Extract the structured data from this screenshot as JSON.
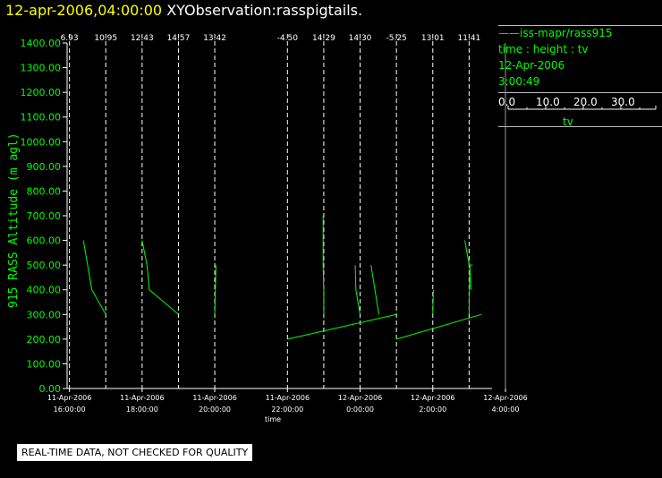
{
  "header": {
    "date_time": "12-apr-2006,04:00:00",
    "title": "XYObservation:rasspigtails."
  },
  "legend": {
    "series_label": "——iss-mapr/rass915",
    "variables": "time : height : tv",
    "date": "12-Apr-2006",
    "time": "3:00:49",
    "scale": {
      "ticks": [
        "0.0",
        "10.0",
        "20.0",
        "30.0"
      ],
      "name": "tv"
    }
  },
  "notice": "REAL-TIME DATA, NOT CHECKED FOR QUALITY",
  "colors": {
    "background": "#000000",
    "trace": "#00ff00",
    "axis": "#ffffff",
    "title_date": "#ffff00"
  },
  "chart_data": {
    "type": "line",
    "title": "XYObservation:rasspigtails.",
    "ylabel": "915 RASS Altitude (m agl)",
    "xlabel": "time",
    "ylim": [
      0,
      1400
    ],
    "yticks": [
      "0.00",
      "100.00",
      "200.00",
      "300.00",
      "400.00",
      "500.00",
      "600.00",
      "700.00",
      "800.00",
      "900.00",
      "1000.00",
      "1100.00",
      "1200.00",
      "1300.00",
      "1400.00"
    ],
    "xlim": [
      "2006-04-11T15:00:00",
      "2006-04-12T04:00:00"
    ],
    "xticks": [
      {
        "date": "11-Apr-2006",
        "time": "16:00:00",
        "value": "2006-04-11T16:00:00"
      },
      {
        "date": "11-Apr-2006",
        "time": "18:00:00",
        "value": "2006-04-11T18:00:00"
      },
      {
        "date": "11-Apr-2006",
        "time": "20:00:00",
        "value": "2006-04-11T20:00:00"
      },
      {
        "date": "11-Apr-2006",
        "time": "22:00:00",
        "value": "2006-04-11T22:00:00"
      },
      {
        "date": "12-Apr-2006",
        "time": "0:00:00",
        "value": "2006-04-12T00:00:00"
      },
      {
        "date": "12-Apr-2006",
        "time": "2:00:00",
        "value": "2006-04-12T02:00:00"
      },
      {
        "date": "12-Apr-2006",
        "time": "4:00:00",
        "value": "2006-04-12T04:00:00"
      }
    ],
    "profiles": [
      {
        "time": "2006-04-11T16:00:00",
        "tv": "6.93"
      },
      {
        "time": "2006-04-11T17:00:00",
        "tv": "10.95"
      },
      {
        "time": "2006-04-11T18:00:00",
        "tv": "12.43"
      },
      {
        "time": "2006-04-11T19:00:00",
        "tv": "14.57"
      },
      {
        "time": "2006-04-11T20:00:00",
        "tv": "13.42"
      },
      {
        "time": "2006-04-11T22:00:00",
        "tv": "-4.50"
      },
      {
        "time": "2006-04-11T23:00:00",
        "tv": "14.29"
      },
      {
        "time": "2006-04-12T00:00:00",
        "tv": "14.30"
      },
      {
        "time": "2006-04-12T01:00:00",
        "tv": "-5.25"
      },
      {
        "time": "2006-04-12T02:00:00",
        "tv": "13.01"
      },
      {
        "time": "2006-04-12T03:00:00",
        "tv": "11.41"
      }
    ],
    "series": [
      {
        "values": [
          {
            "time": "2006-04-11T16:23:00",
            "height": 600
          },
          {
            "time": "2006-04-11T16:37:00",
            "height": 400
          },
          {
            "time": "2006-04-11T17:00:00",
            "height": 300
          }
        ]
      },
      {
        "values": [
          {
            "time": "2006-04-11T18:00:00",
            "height": 600
          },
          {
            "time": "2006-04-11T18:08:00",
            "height": 500
          },
          {
            "time": "2006-04-11T18:12:00",
            "height": 400
          },
          {
            "time": "2006-04-11T19:00:00",
            "height": 300
          }
        ]
      },
      {
        "values": [
          {
            "time": "2006-04-11T20:00:00",
            "height": 300
          },
          {
            "time": "2006-04-11T20:02:00",
            "height": 500
          }
        ]
      },
      {
        "values": [
          {
            "time": "2006-04-11T22:00:00",
            "height": 200
          },
          {
            "time": "2006-04-12T01:00:00",
            "height": 300
          }
        ]
      },
      {
        "values": [
          {
            "time": "2006-04-11T22:59:00",
            "height": 700
          },
          {
            "time": "2006-04-11T22:59:00",
            "height": 500
          },
          {
            "time": "2006-04-11T23:00:00",
            "height": 400
          },
          {
            "time": "2006-04-11T23:00:00",
            "height": 300
          }
        ]
      },
      {
        "values": [
          {
            "time": "2006-04-11T23:52:00",
            "height": 500
          },
          {
            "time": "2006-04-11T23:53:00",
            "height": 400
          },
          {
            "time": "2006-04-12T00:00:00",
            "height": 300
          }
        ]
      },
      {
        "values": [
          {
            "time": "2006-04-12T00:18:00",
            "height": 500
          },
          {
            "time": "2006-04-12T00:31:00",
            "height": 300
          }
        ]
      },
      {
        "values": [
          {
            "time": "2006-04-12T01:00:00",
            "height": 200
          },
          {
            "time": "2006-04-12T03:20:00",
            "height": 300
          }
        ]
      },
      {
        "values": [
          {
            "time": "2006-04-12T02:00:00",
            "height": 300
          },
          {
            "time": "2006-04-12T02:01:00",
            "height": 400
          }
        ]
      },
      {
        "values": [
          {
            "time": "2006-04-12T02:53:00",
            "height": 600
          },
          {
            "time": "2006-04-12T03:00:00",
            "height": 500
          },
          {
            "time": "2006-04-12T03:06:00",
            "height": 500
          }
        ]
      },
      {
        "values": [
          {
            "time": "2006-04-12T03:00:00",
            "height": 300
          },
          {
            "time": "2006-04-12T03:01:00",
            "height": 500
          },
          {
            "time": "2006-04-12T03:03:00",
            "height": 400
          }
        ]
      }
    ]
  }
}
